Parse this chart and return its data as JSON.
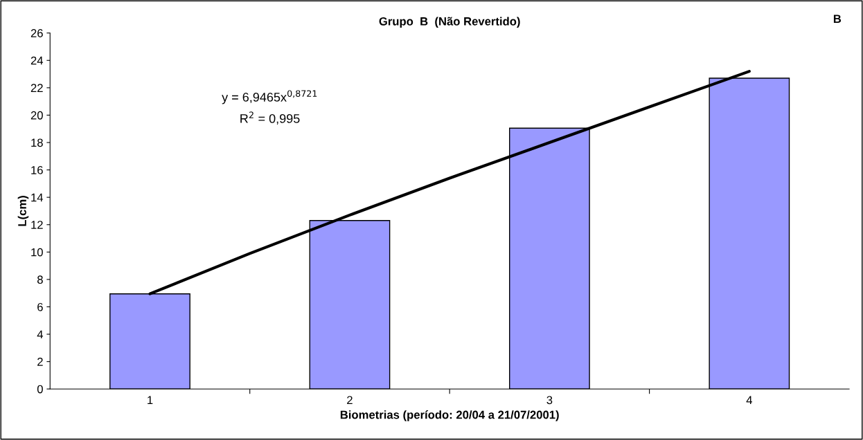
{
  "chart_data": {
    "type": "bar",
    "title": "Grupo  B  (Não Revertido)",
    "xlabel": "Biometrias (período: 20/04 a 21/07/2001)",
    "ylabel": "L(cm)",
    "x": [
      1,
      2,
      3,
      4
    ],
    "series": [
      {
        "color": "#9999ff",
        "values": [
          6.95,
          12.3,
          19.05,
          22.7
        ]
      },
      {
        "type": "line",
        "color": "#000000",
        "x": [
          1,
          1.5,
          2,
          2.5,
          3,
          3.5,
          4
        ],
        "values": [
          6.95,
          9.9,
          12.7,
          15.4,
          18.0,
          20.6,
          23.2
        ]
      }
    ],
    "xlim": [
      0.5,
      4.5
    ],
    "xticks": [
      1,
      {
        "value": 1.5,
        "label": null
      },
      2,
      {
        "value": 2.5,
        "label": null
      },
      3,
      {
        "value": 3.5,
        "label": null
      },
      4
    ],
    "ylim": [
      0,
      26
    ],
    "yticks": [
      0,
      2,
      4,
      6,
      8,
      10,
      12,
      14,
      16,
      18,
      20,
      22,
      24,
      26
    ],
    "grid": false,
    "legend": false,
    "annotations": [
      "B",
      "y = 6,9465x$^{0,8721}$",
      "R$^{2}$ = 0,995"
    ]
  }
}
